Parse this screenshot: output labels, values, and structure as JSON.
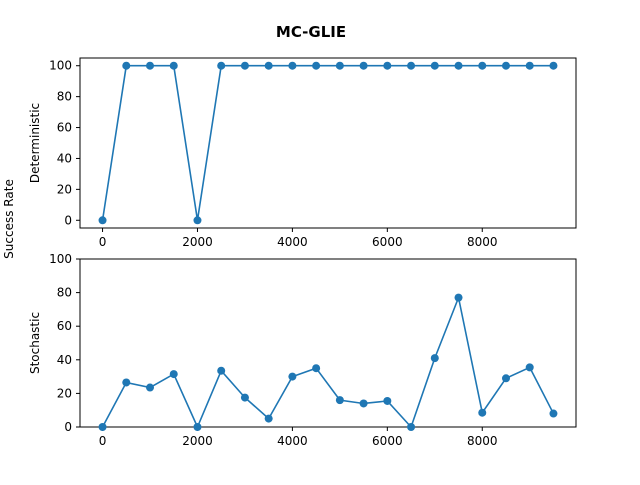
{
  "figure": {
    "title": "MC-GLIE",
    "ylabel": "Success Rate"
  },
  "chart_data": [
    {
      "type": "line",
      "ylabel": "Deterministic",
      "xlabel": "",
      "x": [
        0,
        500,
        1000,
        1500,
        2000,
        2500,
        3000,
        3500,
        4000,
        4500,
        5000,
        5500,
        6000,
        6500,
        7000,
        7500,
        8000,
        8500,
        9000,
        9500
      ],
      "series": [
        {
          "values": [
            0,
            100,
            100,
            100,
            0,
            100,
            100,
            100,
            100,
            100,
            100,
            100,
            100,
            100,
            100,
            100,
            100,
            100,
            100,
            100
          ]
        }
      ],
      "xlim": [
        -475,
        9975
      ],
      "ylim": [
        -5,
        105
      ],
      "xticks": [
        0,
        2000,
        4000,
        6000,
        8000
      ],
      "yticks": [
        0,
        20,
        40,
        60,
        80,
        100
      ],
      "color": "#1f77b4",
      "grid": false,
      "legend": false
    },
    {
      "type": "line",
      "ylabel": "Stochastic",
      "xlabel": "",
      "x": [
        0,
        500,
        1000,
        1500,
        2000,
        2500,
        3000,
        3500,
        4000,
        4500,
        5000,
        5500,
        6000,
        6500,
        7000,
        7500,
        8000,
        8500,
        9000,
        9500
      ],
      "series": [
        {
          "values": [
            0,
            26.5,
            23.5,
            31.5,
            0,
            33.5,
            17.5,
            5,
            30,
            35,
            16,
            14,
            15.5,
            0,
            41,
            77,
            8.5,
            29,
            35.5,
            8
          ]
        }
      ],
      "xlim": [
        -475,
        9975
      ],
      "ylim": [
        0,
        100
      ],
      "xticks": [
        0,
        2000,
        4000,
        6000,
        8000
      ],
      "yticks": [
        0,
        20,
        40,
        60,
        80,
        100
      ],
      "color": "#1f77b4",
      "grid": false,
      "legend": false
    }
  ]
}
